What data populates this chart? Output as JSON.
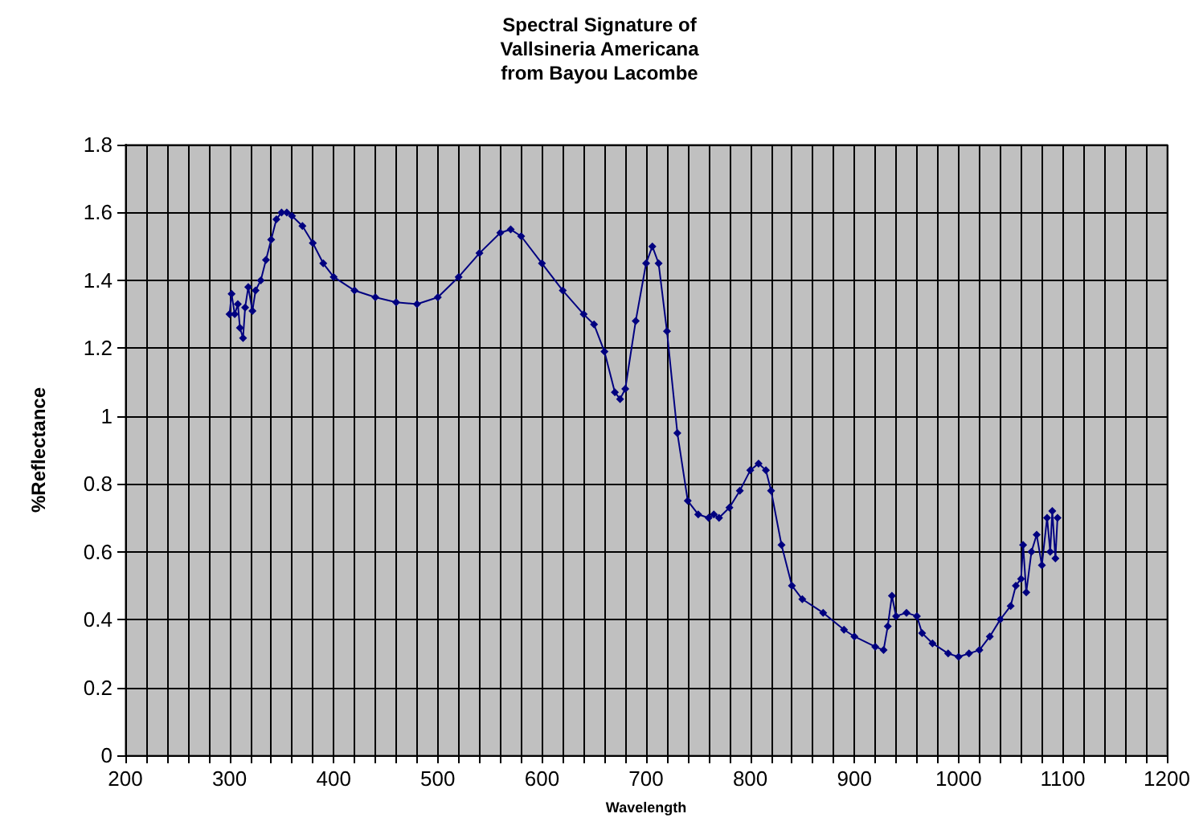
{
  "chart_data": {
    "type": "line",
    "title": "Spectral Signature of\nVallsineria Americana\nfrom Bayou Lacombe",
    "xlabel": "Wavelength",
    "ylabel": "%Reflectance",
    "x": [
      300,
      302,
      305,
      308,
      310,
      313,
      315,
      318,
      322,
      325,
      330,
      335,
      340,
      345,
      350,
      355,
      360,
      370,
      380,
      390,
      400,
      420,
      440,
      460,
      480,
      500,
      520,
      540,
      560,
      570,
      580,
      600,
      620,
      640,
      650,
      660,
      670,
      675,
      680,
      690,
      700,
      706,
      712,
      720,
      730,
      740,
      750,
      760,
      765,
      770,
      780,
      790,
      800,
      808,
      815,
      820,
      830,
      840,
      850,
      870,
      890,
      900,
      920,
      928,
      932,
      936,
      940,
      950,
      960,
      965,
      975,
      990,
      1000,
      1010,
      1020,
      1030,
      1040,
      1050,
      1055,
      1060,
      1062,
      1065,
      1070,
      1075,
      1080,
      1085,
      1088,
      1090,
      1093,
      1095
    ],
    "series": [
      {
        "color": "#000080",
        "values": [
          1.3,
          1.36,
          1.3,
          1.33,
          1.26,
          1.23,
          1.32,
          1.38,
          1.31,
          1.37,
          1.4,
          1.46,
          1.52,
          1.58,
          1.6,
          1.6,
          1.59,
          1.56,
          1.51,
          1.45,
          1.41,
          1.37,
          1.35,
          1.335,
          1.33,
          1.35,
          1.41,
          1.48,
          1.54,
          1.55,
          1.53,
          1.45,
          1.37,
          1.3,
          1.27,
          1.19,
          1.07,
          1.05,
          1.08,
          1.28,
          1.45,
          1.5,
          1.45,
          1.25,
          0.95,
          0.75,
          0.71,
          0.7,
          0.71,
          0.7,
          0.73,
          0.78,
          0.84,
          0.86,
          0.84,
          0.78,
          0.62,
          0.5,
          0.46,
          0.42,
          0.37,
          0.35,
          0.32,
          0.31,
          0.38,
          0.47,
          0.41,
          0.42,
          0.41,
          0.36,
          0.33,
          0.3,
          0.29,
          0.3,
          0.31,
          0.35,
          0.4,
          0.44,
          0.5,
          0.52,
          0.62,
          0.48,
          0.6,
          0.65,
          0.56,
          0.7,
          0.6,
          0.72,
          0.58,
          0.7
        ]
      }
    ],
    "xlim": [
      200,
      1200
    ],
    "xticks": [
      200,
      {
        "value": 220,
        "label": null
      },
      {
        "value": 240,
        "label": null
      },
      {
        "value": 260,
        "label": null
      },
      {
        "value": 280,
        "label": null
      },
      300,
      {
        "value": 320,
        "label": null
      },
      {
        "value": 340,
        "label": null
      },
      {
        "value": 360,
        "label": null
      },
      {
        "value": 380,
        "label": null
      },
      400,
      {
        "value": 420,
        "label": null
      },
      {
        "value": 440,
        "label": null
      },
      {
        "value": 460,
        "label": null
      },
      {
        "value": 480,
        "label": null
      },
      500,
      {
        "value": 520,
        "label": null
      },
      {
        "value": 540,
        "label": null
      },
      {
        "value": 560,
        "label": null
      },
      {
        "value": 580,
        "label": null
      },
      600,
      {
        "value": 620,
        "label": null
      },
      {
        "value": 640,
        "label": null
      },
      {
        "value": 660,
        "label": null
      },
      {
        "value": 680,
        "label": null
      },
      700,
      {
        "value": 720,
        "label": null
      },
      {
        "value": 740,
        "label": null
      },
      {
        "value": 760,
        "label": null
      },
      {
        "value": 780,
        "label": null
      },
      800,
      {
        "value": 820,
        "label": null
      },
      {
        "value": 840,
        "label": null
      },
      {
        "value": 860,
        "label": null
      },
      {
        "value": 880,
        "label": null
      },
      900,
      {
        "value": 920,
        "label": null
      },
      {
        "value": 940,
        "label": null
      },
      {
        "value": 960,
        "label": null
      },
      {
        "value": 980,
        "label": null
      },
      1000,
      {
        "value": 1020,
        "label": null
      },
      {
        "value": 1040,
        "label": null
      },
      {
        "value": 1060,
        "label": null
      },
      {
        "value": 1080,
        "label": null
      },
      1100,
      {
        "value": 1120,
        "label": null
      },
      {
        "value": 1140,
        "label": null
      },
      {
        "value": 1160,
        "label": null
      },
      {
        "value": 1180,
        "label": null
      },
      1200
    ],
    "ylim": [
      0,
      1.8
    ],
    "yticks": [
      0,
      0.2,
      0.4,
      0.6,
      0.8,
      1,
      1.2,
      1.4,
      1.6,
      1.8
    ],
    "grid": true,
    "marker": "diamond",
    "line_style": "solid"
  }
}
